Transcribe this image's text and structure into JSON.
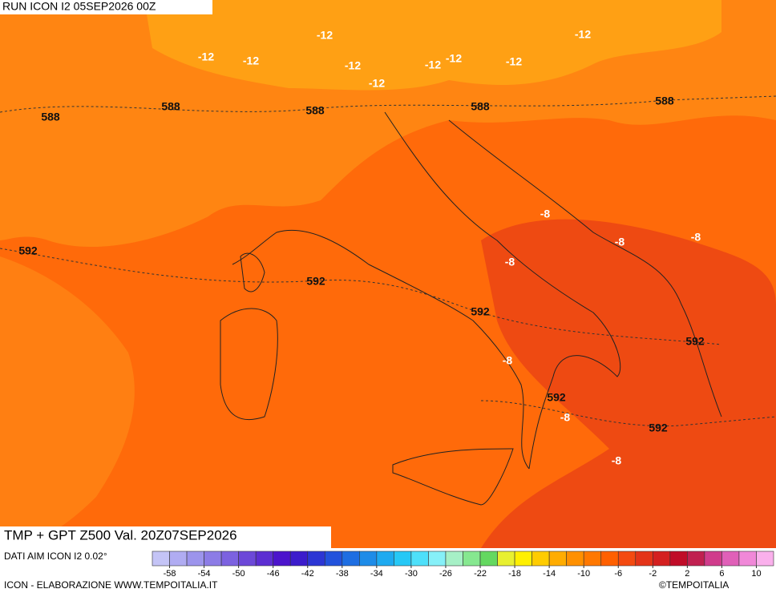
{
  "header": {
    "run": "RUN ICON I2 05SEP2026 00Z"
  },
  "map": {
    "temperature_labels": [
      -12,
      -12,
      -12,
      -12,
      -12,
      -12,
      -12,
      -12,
      -12,
      -8,
      -8,
      -8,
      -8,
      -8,
      -8,
      -8
    ],
    "geopotential_labels": [
      588,
      588,
      588,
      588,
      588,
      592,
      592,
      592,
      592,
      592,
      592
    ]
  },
  "footer": {
    "title": "TMP + GPT Z500 Val. 20Z07SEP2026",
    "source": "DATI AIM ICON I2 0.02°",
    "credit": "ICON - ELABORAZIONE WWW.TEMPOITALIA.IT",
    "copyright": "©TEMPOITALIA"
  },
  "legend": {
    "scale_range": [
      -60,
      12
    ],
    "ticks": [
      -58,
      -54,
      -50,
      -46,
      -42,
      -38,
      -34,
      -30,
      -26,
      -22,
      -18,
      -14,
      -10,
      -6,
      -2,
      2,
      6,
      10
    ],
    "colors": [
      "#c4c4f6",
      "#b0acf2",
      "#9c94ec",
      "#8c7ce6",
      "#7c62e0",
      "#6c48d8",
      "#5c2ed2",
      "#4c14cc",
      "#3c1ccc",
      "#2c36d4",
      "#2252dc",
      "#1e6ee2",
      "#1e8ce8",
      "#1eaaf0",
      "#26c8f6",
      "#4ee0fa",
      "#86f0f8",
      "#a6f0c6",
      "#86e890",
      "#64d860",
      "#e8f030",
      "#fff000",
      "#ffcc00",
      "#ffac00",
      "#ff9000",
      "#ff7800",
      "#ff6000",
      "#f44a10",
      "#e43418",
      "#d42020",
      "#c00c28",
      "#c02050",
      "#d03c8c",
      "#e060b8",
      "#f088d8",
      "#fab0ec"
    ]
  }
}
